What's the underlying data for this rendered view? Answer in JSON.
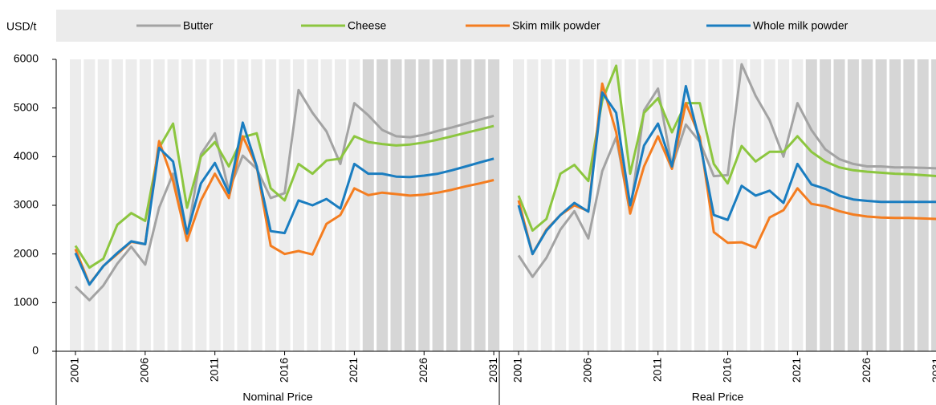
{
  "chart_data": {
    "type": "line",
    "y_label": "USD/t",
    "ylim": [
      0,
      6000
    ],
    "yticks": [
      0,
      1000,
      2000,
      3000,
      4000,
      5000,
      6000
    ],
    "x": [
      2001,
      2002,
      2003,
      2004,
      2005,
      2006,
      2007,
      2008,
      2009,
      2010,
      2011,
      2012,
      2013,
      2014,
      2015,
      2016,
      2017,
      2018,
      2019,
      2020,
      2021,
      2022,
      2023,
      2024,
      2025,
      2026,
      2027,
      2028,
      2029,
      2030,
      2031
    ],
    "xticks": [
      2001,
      2006,
      2011,
      2016,
      2021,
      2026,
      2031
    ],
    "projection_from": 2022,
    "series": [
      {
        "name": "Butter",
        "color": "#a3a3a3"
      },
      {
        "name": "Cheese",
        "color": "#8cc63f"
      },
      {
        "name": "Skim milk powder",
        "color": "#f47d20"
      },
      {
        "name": "Whole milk powder",
        "color": "#1a7dc0"
      }
    ],
    "panels": [
      {
        "title": "Nominal Price",
        "series": [
          {
            "values": [
              1330,
              1050,
              1350,
              1800,
              2150,
              1780,
              2950,
              3650,
              2350,
              4050,
              4480,
              3300,
              4020,
              3750,
              3150,
              3250,
              5370,
              4900,
              4520,
              3850,
              5100,
              4850,
              4550,
              4420,
              4400,
              4450,
              4530,
              4600,
              4680,
              4760,
              4840
            ]
          },
          {
            "values": [
              2170,
              1720,
              1900,
              2600,
              2840,
              2680,
              4180,
              4680,
              2950,
              4000,
              4300,
              3800,
              4400,
              4480,
              3350,
              3100,
              3850,
              3650,
              3920,
              3960,
              4420,
              4300,
              4260,
              4230,
              4250,
              4290,
              4350,
              4420,
              4490,
              4560,
              4630
            ]
          },
          {
            "values": [
              2100,
              1380,
              1750,
              2000,
              2250,
              2200,
              4320,
              3500,
              2270,
              3100,
              3650,
              3150,
              4420,
              3800,
              2170,
              2000,
              2060,
              1990,
              2620,
              2800,
              3350,
              3210,
              3260,
              3230,
              3200,
              3220,
              3260,
              3320,
              3390,
              3450,
              3520
            ]
          },
          {
            "values": [
              2020,
              1370,
              1750,
              2020,
              2260,
              2200,
              4180,
              3900,
              2420,
              3450,
              3870,
              3250,
              4700,
              3800,
              2470,
              2430,
              3100,
              3000,
              3130,
              2930,
              3850,
              3650,
              3650,
              3590,
              3580,
              3610,
              3650,
              3720,
              3800,
              3880,
              3960
            ]
          }
        ]
      },
      {
        "title": "Real Price",
        "series": [
          {
            "values": [
              1970,
              1530,
              1920,
              2500,
              2880,
              2320,
              3700,
              4400,
              2850,
              4950,
              5400,
              3800,
              4660,
              4300,
              3600,
              3620,
              5900,
              5250,
              4750,
              4000,
              5100,
              4550,
              4150,
              3950,
              3850,
              3800,
              3800,
              3780,
              3780,
              3770,
              3760
            ]
          },
          {
            "values": [
              3200,
              2480,
              2720,
              3650,
              3830,
              3500,
              5150,
              5870,
              3650,
              4900,
              5200,
              4500,
              5100,
              5100,
              3850,
              3450,
              4220,
              3900,
              4100,
              4100,
              4420,
              4100,
              3900,
              3780,
              3720,
              3690,
              3670,
              3650,
              3640,
              3620,
              3600
            ]
          },
          {
            "values": [
              3100,
              2000,
              2500,
              2800,
              3000,
              2880,
              5500,
              4500,
              2830,
              3800,
              4420,
              3750,
              5100,
              4400,
              2450,
              2230,
              2240,
              2130,
              2750,
              2900,
              3350,
              3030,
              2980,
              2880,
              2810,
              2770,
              2750,
              2740,
              2740,
              2730,
              2720
            ]
          },
          {
            "values": [
              3000,
              2000,
              2480,
              2800,
              3050,
              2870,
              5320,
              4900,
              3000,
              4230,
              4680,
              3800,
              5450,
              4300,
              2800,
              2700,
              3400,
              3200,
              3300,
              3050,
              3850,
              3430,
              3340,
              3200,
              3120,
              3090,
              3070,
              3070,
              3070,
              3070,
              3070
            ]
          }
        ]
      }
    ]
  }
}
